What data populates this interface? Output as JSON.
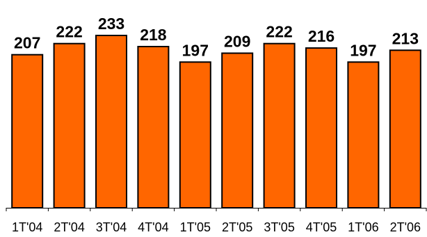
{
  "chart_data": {
    "type": "bar",
    "categories": [
      "1T'04",
      "2T'04",
      "3T'04",
      "4T'04",
      "1T'05",
      "2T'05",
      "3T'05",
      "4T'05",
      "1T'06",
      "2T'06"
    ],
    "values": [
      207,
      222,
      233,
      218,
      197,
      209,
      222,
      216,
      197,
      213
    ],
    "data_labels": [
      "207",
      "222",
      "233",
      "218",
      "197",
      "209",
      "222",
      "216",
      "197",
      "213"
    ],
    "ylim": [
      0,
      233
    ],
    "grid": false,
    "bar_color": "#FF6600",
    "bar_outline_color": "#000000"
  }
}
